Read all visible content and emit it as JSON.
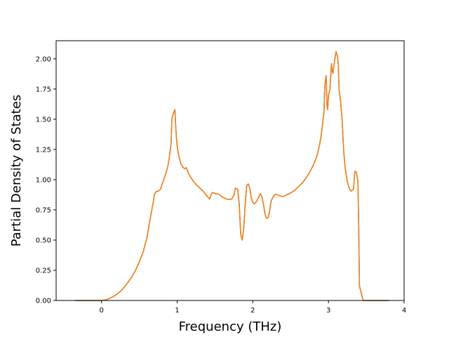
{
  "chart_data": {
    "type": "line",
    "title": "",
    "xlabel": "Frequency (THz)",
    "ylabel": "Partial Density of States",
    "xlim": [
      -0.6,
      4.0
    ],
    "ylim": [
      0.0,
      2.15
    ],
    "grid": false,
    "x_ticks": [
      0,
      1,
      2,
      3,
      4
    ],
    "x_tick_labels": [
      "0",
      "1",
      "2",
      "3",
      "4"
    ],
    "y_ticks": [
      0.0,
      0.25,
      0.5,
      0.75,
      1.0,
      1.25,
      1.5,
      1.75,
      2.0
    ],
    "y_tick_labels": [
      "0.00",
      "0.25",
      "0.50",
      "0.75",
      "1.00",
      "1.25",
      "1.50",
      "1.75",
      "2.00"
    ],
    "series": [
      {
        "color": "#1f77b4",
        "points": [
          [
            -0.35,
            0.0
          ],
          [
            0.0,
            0.0
          ],
          [
            0.05,
            0.005
          ],
          [
            0.1,
            0.015
          ],
          [
            0.15,
            0.03
          ],
          [
            0.2,
            0.05
          ],
          [
            0.25,
            0.075
          ],
          [
            0.3,
            0.11
          ],
          [
            0.35,
            0.15
          ],
          [
            0.4,
            0.195
          ],
          [
            0.45,
            0.25
          ],
          [
            0.5,
            0.32
          ],
          [
            0.55,
            0.4
          ],
          [
            0.6,
            0.52
          ],
          [
            0.65,
            0.7
          ],
          [
            0.68,
            0.8
          ],
          [
            0.7,
            0.88
          ],
          [
            0.72,
            0.9
          ],
          [
            0.75,
            0.905
          ],
          [
            0.78,
            0.92
          ],
          [
            0.8,
            0.96
          ],
          [
            0.85,
            1.05
          ],
          [
            0.88,
            1.12
          ],
          [
            0.9,
            1.2
          ],
          [
            0.92,
            1.3
          ],
          [
            0.93,
            1.5
          ],
          [
            0.95,
            1.55
          ],
          [
            0.97,
            1.58
          ],
          [
            0.98,
            1.45
          ],
          [
            0.99,
            1.35
          ],
          [
            1.0,
            1.28
          ],
          [
            1.02,
            1.2
          ],
          [
            1.05,
            1.13
          ],
          [
            1.08,
            1.1
          ],
          [
            1.1,
            1.09
          ],
          [
            1.12,
            1.1
          ],
          [
            1.13,
            1.085
          ],
          [
            1.15,
            1.05
          ],
          [
            1.2,
            1.0
          ],
          [
            1.25,
            0.96
          ],
          [
            1.3,
            0.93
          ],
          [
            1.35,
            0.9
          ],
          [
            1.4,
            0.86
          ],
          [
            1.43,
            0.84
          ],
          [
            1.45,
            0.88
          ],
          [
            1.47,
            0.895
          ],
          [
            1.5,
            0.885
          ],
          [
            1.55,
            0.88
          ],
          [
            1.6,
            0.855
          ],
          [
            1.65,
            0.84
          ],
          [
            1.7,
            0.835
          ],
          [
            1.72,
            0.84
          ],
          [
            1.75,
            0.87
          ],
          [
            1.77,
            0.93
          ],
          [
            1.8,
            0.92
          ],
          [
            1.82,
            0.8
          ],
          [
            1.84,
            0.55
          ],
          [
            1.86,
            0.5
          ],
          [
            1.88,
            0.6
          ],
          [
            1.9,
            0.8
          ],
          [
            1.92,
            0.95
          ],
          [
            1.94,
            0.965
          ],
          [
            1.96,
            0.93
          ],
          [
            1.98,
            0.85
          ],
          [
            2.0,
            0.81
          ],
          [
            2.02,
            0.8
          ],
          [
            2.05,
            0.82
          ],
          [
            2.08,
            0.86
          ],
          [
            2.1,
            0.885
          ],
          [
            2.12,
            0.86
          ],
          [
            2.14,
            0.8
          ],
          [
            2.16,
            0.72
          ],
          [
            2.18,
            0.68
          ],
          [
            2.2,
            0.685
          ],
          [
            2.22,
            0.73
          ],
          [
            2.24,
            0.82
          ],
          [
            2.27,
            0.86
          ],
          [
            2.3,
            0.88
          ],
          [
            2.33,
            0.875
          ],
          [
            2.36,
            0.865
          ],
          [
            2.4,
            0.86
          ],
          [
            2.45,
            0.875
          ],
          [
            2.5,
            0.89
          ],
          [
            2.55,
            0.91
          ],
          [
            2.6,
            0.94
          ],
          [
            2.65,
            0.97
          ],
          [
            2.7,
            1.01
          ],
          [
            2.75,
            1.06
          ],
          [
            2.8,
            1.12
          ],
          [
            2.85,
            1.2
          ],
          [
            2.88,
            1.28
          ],
          [
            2.9,
            1.35
          ],
          [
            2.92,
            1.45
          ],
          [
            2.94,
            1.55
          ],
          [
            2.95,
            1.75
          ],
          [
            2.96,
            1.82
          ],
          [
            2.97,
            1.86
          ],
          [
            2.98,
            1.62
          ],
          [
            2.99,
            1.58
          ],
          [
            3.0,
            1.7
          ],
          [
            3.02,
            1.75
          ],
          [
            3.04,
            1.96
          ],
          [
            3.05,
            1.9
          ],
          [
            3.06,
            1.88
          ],
          [
            3.08,
            1.98
          ],
          [
            3.1,
            2.06
          ],
          [
            3.12,
            2.02
          ],
          [
            3.13,
            1.95
          ],
          [
            3.14,
            1.75
          ],
          [
            3.16,
            1.65
          ],
          [
            3.18,
            1.5
          ],
          [
            3.2,
            1.25
          ],
          [
            3.22,
            1.1
          ],
          [
            3.25,
            0.98
          ],
          [
            3.28,
            0.92
          ],
          [
            3.3,
            0.905
          ],
          [
            3.33,
            0.92
          ],
          [
            3.35,
            1.07
          ],
          [
            3.37,
            1.06
          ],
          [
            3.39,
            0.98
          ],
          [
            3.4,
            0.6
          ],
          [
            3.41,
            0.12
          ],
          [
            3.43,
            0.07
          ],
          [
            3.45,
            0.02
          ],
          [
            3.46,
            0.0
          ],
          [
            3.5,
            0.0
          ],
          [
            3.6,
            0.0
          ],
          [
            3.8,
            0.0
          ]
        ]
      },
      {
        "color": "#ff7f0e",
        "points": [
          [
            -0.35,
            0.0
          ],
          [
            0.0,
            0.0
          ],
          [
            0.05,
            0.005
          ],
          [
            0.1,
            0.015
          ],
          [
            0.15,
            0.03
          ],
          [
            0.2,
            0.05
          ],
          [
            0.25,
            0.075
          ],
          [
            0.3,
            0.11
          ],
          [
            0.35,
            0.15
          ],
          [
            0.4,
            0.195
          ],
          [
            0.45,
            0.25
          ],
          [
            0.5,
            0.32
          ],
          [
            0.55,
            0.4
          ],
          [
            0.6,
            0.52
          ],
          [
            0.65,
            0.7
          ],
          [
            0.68,
            0.8
          ],
          [
            0.7,
            0.88
          ],
          [
            0.72,
            0.9
          ],
          [
            0.75,
            0.905
          ],
          [
            0.78,
            0.92
          ],
          [
            0.8,
            0.96
          ],
          [
            0.85,
            1.05
          ],
          [
            0.88,
            1.12
          ],
          [
            0.9,
            1.2
          ],
          [
            0.92,
            1.3
          ],
          [
            0.93,
            1.5
          ],
          [
            0.95,
            1.55
          ],
          [
            0.97,
            1.58
          ],
          [
            0.98,
            1.45
          ],
          [
            0.99,
            1.35
          ],
          [
            1.0,
            1.28
          ],
          [
            1.02,
            1.2
          ],
          [
            1.05,
            1.13
          ],
          [
            1.08,
            1.1
          ],
          [
            1.1,
            1.09
          ],
          [
            1.12,
            1.1
          ],
          [
            1.13,
            1.085
          ],
          [
            1.15,
            1.05
          ],
          [
            1.2,
            1.0
          ],
          [
            1.25,
            0.96
          ],
          [
            1.3,
            0.93
          ],
          [
            1.35,
            0.9
          ],
          [
            1.4,
            0.86
          ],
          [
            1.43,
            0.84
          ],
          [
            1.45,
            0.88
          ],
          [
            1.47,
            0.895
          ],
          [
            1.5,
            0.885
          ],
          [
            1.55,
            0.88
          ],
          [
            1.6,
            0.855
          ],
          [
            1.65,
            0.84
          ],
          [
            1.7,
            0.835
          ],
          [
            1.72,
            0.84
          ],
          [
            1.75,
            0.87
          ],
          [
            1.77,
            0.93
          ],
          [
            1.8,
            0.92
          ],
          [
            1.82,
            0.8
          ],
          [
            1.84,
            0.55
          ],
          [
            1.86,
            0.5
          ],
          [
            1.88,
            0.6
          ],
          [
            1.9,
            0.8
          ],
          [
            1.92,
            0.95
          ],
          [
            1.94,
            0.965
          ],
          [
            1.96,
            0.93
          ],
          [
            1.98,
            0.85
          ],
          [
            2.0,
            0.81
          ],
          [
            2.02,
            0.8
          ],
          [
            2.05,
            0.82
          ],
          [
            2.08,
            0.86
          ],
          [
            2.1,
            0.885
          ],
          [
            2.12,
            0.86
          ],
          [
            2.14,
            0.8
          ],
          [
            2.16,
            0.72
          ],
          [
            2.18,
            0.68
          ],
          [
            2.2,
            0.685
          ],
          [
            2.22,
            0.73
          ],
          [
            2.24,
            0.82
          ],
          [
            2.27,
            0.86
          ],
          [
            2.3,
            0.88
          ],
          [
            2.33,
            0.875
          ],
          [
            2.36,
            0.865
          ],
          [
            2.4,
            0.86
          ],
          [
            2.45,
            0.875
          ],
          [
            2.5,
            0.89
          ],
          [
            2.55,
            0.91
          ],
          [
            2.6,
            0.94
          ],
          [
            2.65,
            0.97
          ],
          [
            2.7,
            1.01
          ],
          [
            2.75,
            1.06
          ],
          [
            2.8,
            1.12
          ],
          [
            2.85,
            1.2
          ],
          [
            2.88,
            1.28
          ],
          [
            2.9,
            1.35
          ],
          [
            2.92,
            1.45
          ],
          [
            2.94,
            1.55
          ],
          [
            2.95,
            1.75
          ],
          [
            2.96,
            1.82
          ],
          [
            2.97,
            1.86
          ],
          [
            2.98,
            1.62
          ],
          [
            2.99,
            1.58
          ],
          [
            3.0,
            1.7
          ],
          [
            3.02,
            1.75
          ],
          [
            3.04,
            1.96
          ],
          [
            3.05,
            1.9
          ],
          [
            3.06,
            1.88
          ],
          [
            3.08,
            1.98
          ],
          [
            3.1,
            2.06
          ],
          [
            3.12,
            2.02
          ],
          [
            3.13,
            1.95
          ],
          [
            3.14,
            1.75
          ],
          [
            3.16,
            1.65
          ],
          [
            3.18,
            1.5
          ],
          [
            3.2,
            1.25
          ],
          [
            3.22,
            1.1
          ],
          [
            3.25,
            0.98
          ],
          [
            3.28,
            0.92
          ],
          [
            3.3,
            0.905
          ],
          [
            3.33,
            0.92
          ],
          [
            3.35,
            1.07
          ],
          [
            3.37,
            1.06
          ],
          [
            3.39,
            0.98
          ],
          [
            3.4,
            0.6
          ],
          [
            3.41,
            0.12
          ],
          [
            3.43,
            0.07
          ],
          [
            3.45,
            0.02
          ],
          [
            3.46,
            0.0
          ],
          [
            3.5,
            0.0
          ],
          [
            3.6,
            0.0
          ],
          [
            3.8,
            0.0
          ]
        ]
      }
    ]
  }
}
